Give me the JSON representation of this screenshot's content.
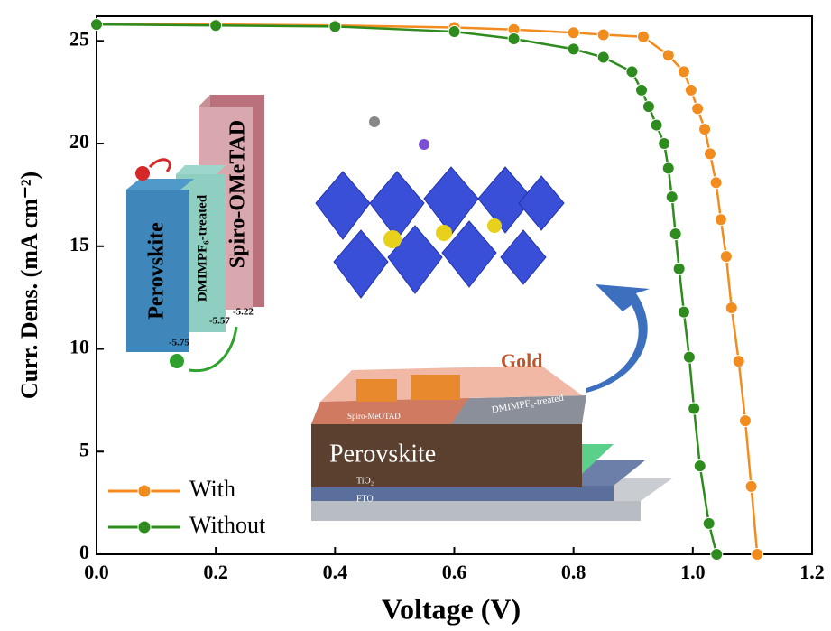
{
  "chart_data": {
    "type": "line",
    "xlabel": "Voltage (V)",
    "ylabel": "Curr. Dens. (mA cm⁻²)",
    "xlim": [
      0,
      1.2
    ],
    "ylim": [
      0,
      26.2
    ],
    "xticks": [
      {
        "value": 0,
        "label": "0.0"
      },
      0.2,
      0.4,
      0.6,
      0.8,
      {
        "value": 1,
        "label": "1.0"
      },
      1.2
    ],
    "yticks": [
      0,
      5,
      10,
      15,
      20,
      25
    ],
    "legend": "lower left",
    "series": [
      {
        "name": "With",
        "color": "#f28c1e",
        "x": [
          0,
          0.2,
          0.4,
          0.6,
          0.7,
          0.8,
          0.85,
          0.917,
          0.959,
          0.985,
          0.997,
          1.008,
          1.02,
          1.029,
          1.039,
          1.047,
          1.056,
          1.065,
          1.077,
          1.088,
          1.098,
          1.108
        ],
        "values": [
          25.8,
          25.8,
          25.75,
          25.65,
          25.55,
          25.4,
          25.3,
          25.2,
          24.3,
          23.5,
          22.6,
          21.7,
          20.7,
          19.5,
          18.1,
          16.3,
          14.5,
          12.0,
          9.4,
          6.5,
          3.3,
          0
        ]
      },
      {
        "name": "Without",
        "color": "#2e8b1e",
        "x": [
          0,
          0.2,
          0.4,
          0.6,
          0.7,
          0.8,
          0.85,
          0.898,
          0.914,
          0.926,
          0.939,
          0.952,
          0.959,
          0.965,
          0.971,
          0.977,
          0.985,
          0.994,
          1.002,
          1.012,
          1.027,
          1.04
        ],
        "values": [
          25.8,
          25.75,
          25.7,
          25.45,
          25.1,
          24.6,
          24.2,
          23.5,
          22.6,
          21.8,
          20.9,
          20.0,
          18.8,
          17.4,
          15.6,
          13.9,
          11.8,
          9.6,
          7.1,
          4.3,
          1.5,
          0
        ]
      }
    ]
  },
  "insets": {
    "perovskite": "Perovskite",
    "treated": "DMIMPF₆-treated",
    "spiro": "Spiro-OMeTAD",
    "e1": "-5.75",
    "e2": "-5.57",
    "e3": "-5.22",
    "gold": "Gold",
    "spiro_layer": "Spiro-MeOTAD",
    "treated_layer": "DMIMPF₆-treated",
    "perovskite_layer": "Perovskite",
    "tio2": "TiO₂",
    "fto": "FTO"
  }
}
